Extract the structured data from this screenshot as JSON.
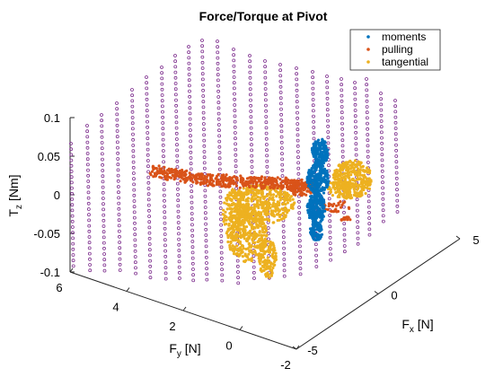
{
  "chart_data": {
    "type": "scatter",
    "projection": "3d",
    "title": "Force/Torque at Pivot",
    "axes": {
      "x": {
        "label": "F",
        "label_sub": "x",
        "unit": "[N]",
        "range": [
          -5,
          5
        ],
        "ticks": [
          "-5",
          "0",
          "5"
        ]
      },
      "y": {
        "label": "F",
        "label_sub": "y",
        "unit": "[N]",
        "range": [
          -2,
          6
        ],
        "ticks": [
          "-2",
          "0",
          "2",
          "4",
          "6"
        ]
      },
      "z": {
        "label": "T",
        "label_sub": "z",
        "unit": "[Nm]",
        "range": [
          -0.1,
          0.1
        ],
        "ticks": [
          "-0.1",
          "-0.05",
          "0",
          "0.05",
          "0.1"
        ]
      }
    },
    "grid": false,
    "legend_position": "top-right",
    "series": [
      {
        "name": "moments",
        "color": "#0072BD",
        "marker": "dot",
        "x": [
          -4.8,
          -4.6,
          -4.4,
          -4.2,
          -4.0,
          -3.9,
          -3.7,
          -3.5,
          -3.3,
          -3.0,
          -2.8,
          -2.5
        ],
        "y": [
          -1.0,
          -0.8,
          -0.5,
          -0.3,
          0.0,
          0.2,
          0.4,
          0.6,
          0.8,
          1.0,
          1.2,
          1.4
        ],
        "z": [
          0.045,
          0.03,
          0.02,
          0.01,
          0.0,
          -0.01,
          -0.02,
          -0.03,
          -0.035,
          -0.03,
          -0.025,
          -0.02
        ]
      },
      {
        "name": "pulling",
        "color": "#D95319",
        "marker": "dot",
        "x": [
          4.0,
          3.0,
          2.0,
          1.0,
          0.0,
          -1.0,
          -2.0,
          -3.0,
          -4.0
        ],
        "y": [
          5.0,
          4.5,
          4.0,
          3.5,
          3.0,
          2.5,
          2.0,
          1.5,
          1.0
        ],
        "z": [
          0.03,
          0.03,
          0.03,
          0.03,
          0.03,
          0.03,
          0.03,
          0.02,
          0.0
        ]
      },
      {
        "name": "tangential",
        "color": "#EDB120",
        "marker": "dot",
        "x": [
          1.0,
          0.5,
          0.0,
          -0.5,
          -1.0,
          -1.5,
          -2.0,
          -2.5,
          -3.0,
          -3.5
        ],
        "y": [
          2.5,
          2.0,
          1.8,
          1.5,
          1.2,
          1.0,
          0.8,
          0.5,
          0.2,
          0.0
        ],
        "z": [
          0.0,
          -0.02,
          -0.05,
          -0.08,
          -0.06,
          -0.03,
          0.0,
          0.0,
          0.0,
          0.0
        ]
      }
    ],
    "background_grid_series": {
      "color": "#7E2F8E",
      "marker": "circle"
    }
  }
}
